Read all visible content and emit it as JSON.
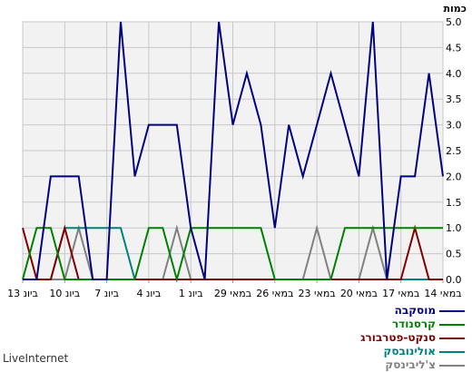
{
  "chart_data": {
    "type": "line",
    "ylabel": "כמות",
    "ylim": [
      0,
      5
    ],
    "yticks": [
      "0.0",
      "0.5",
      "1.0",
      "1.5",
      "2.0",
      "2.5",
      "3.0",
      "3.5",
      "4.0",
      "4.5",
      "5.0"
    ],
    "grid": true,
    "categories": [
      "13 ביונ",
      "",
      "",
      "10 ביונ",
      "",
      "",
      "7 ביונ",
      "",
      "",
      "4 ביונ",
      "",
      "",
      "1 ביונ",
      "",
      "",
      "29 במאי",
      "",
      "",
      "26 במאי",
      "",
      "",
      "23 במאי",
      "",
      "",
      "20 במאי",
      "",
      "",
      "17 במאי",
      "",
      "",
      "14 במאי"
    ],
    "series": [
      {
        "name": "מוסקבה",
        "color": "#000080",
        "values": [
          0,
          0,
          2,
          2,
          2,
          0,
          0,
          5,
          2,
          3,
          3,
          3,
          1,
          0,
          5,
          3,
          4,
          3,
          1,
          3,
          2,
          3,
          4,
          3,
          2,
          5,
          0,
          2,
          2,
          4,
          2
        ]
      },
      {
        "name": "קרסנודר",
        "color": "#008000",
        "values": [
          0,
          1,
          1,
          0,
          0,
          0,
          0,
          0,
          0,
          1,
          1,
          0,
          1,
          1,
          1,
          1,
          1,
          1,
          0,
          0,
          0,
          0,
          0,
          1,
          1,
          1,
          1,
          1,
          1,
          1,
          1
        ]
      },
      {
        "name": "סנקט-פטרבורג",
        "color": "#800000",
        "values": [
          1,
          0,
          0,
          1,
          0,
          0,
          0,
          0,
          0,
          0,
          0,
          0,
          0,
          0,
          0,
          0,
          0,
          0,
          0,
          0,
          0,
          0,
          0,
          0,
          0,
          0,
          0,
          0,
          1,
          0,
          0
        ]
      },
      {
        "name": "אולינובסק",
        "color": "#008080",
        "values": [
          0,
          0,
          0,
          1,
          1,
          1,
          1,
          1,
          0,
          0,
          0,
          0,
          0,
          0,
          0,
          0,
          0,
          0,
          0,
          0,
          0,
          0,
          0,
          0,
          0,
          0,
          0,
          0,
          0,
          0,
          0
        ]
      },
      {
        "name": "צ'ליבינסק",
        "color": "#808080",
        "values": [
          0,
          0,
          0,
          0,
          1,
          0,
          0,
          0,
          0,
          0,
          0,
          1,
          0,
          0,
          0,
          0,
          0,
          0,
          0,
          0,
          0,
          1,
          0,
          0,
          0,
          1,
          0,
          0,
          0,
          0,
          0
        ]
      }
    ]
  },
  "footer": "LiveInternet"
}
